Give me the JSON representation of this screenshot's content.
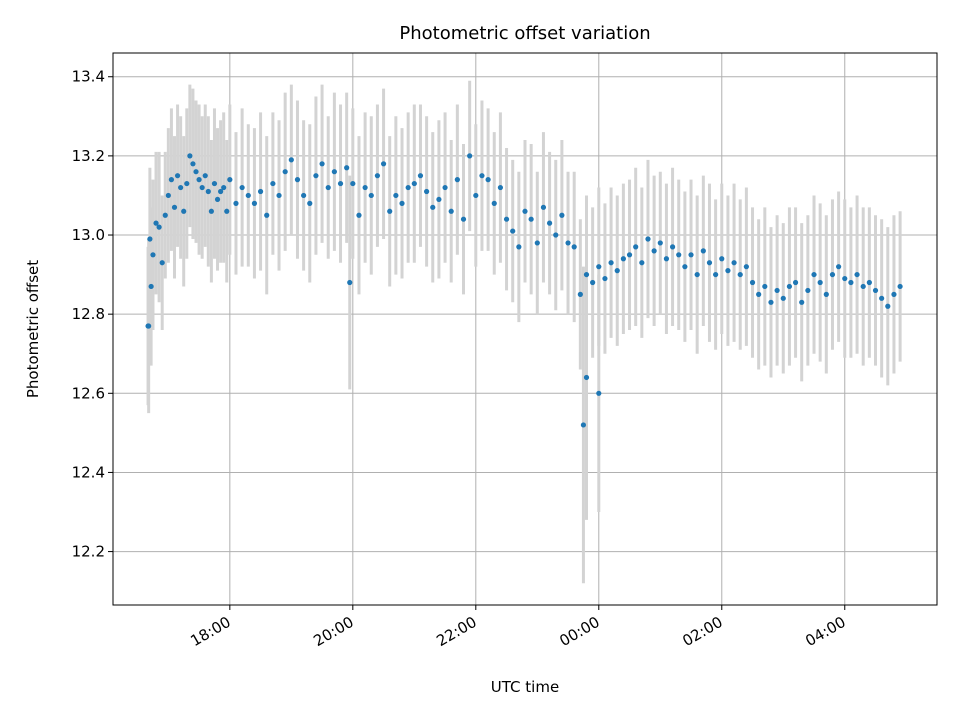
{
  "chart_data": {
    "type": "scatter",
    "title": "Photometric offset variation",
    "xlabel": "UTC time",
    "ylabel": "Photometric offset",
    "x_unit": "hours UTC (continuing past midnight as 24+)",
    "xlim": [
      16.1,
      29.5
    ],
    "ylim": [
      12.065,
      13.46
    ],
    "yticks": [
      12.2,
      12.4,
      12.6,
      12.8,
      13.0,
      13.2,
      13.4
    ],
    "xticks": [
      {
        "value": 18,
        "label": "18:00"
      },
      {
        "value": 20,
        "label": "20:00"
      },
      {
        "value": 22,
        "label": "22:00"
      },
      {
        "value": 24,
        "label": "00:00"
      },
      {
        "value": 26,
        "label": "02:00"
      },
      {
        "value": 28,
        "label": "04:00"
      }
    ],
    "grid": true,
    "colors": {
      "point": "#1f77b4",
      "errorbar": "#d3d3d3",
      "grid": "#b0b0b0"
    },
    "series": [
      {
        "kind": "points with error bars",
        "x": [
          16.67,
          16.7,
          16.72,
          16.75,
          16.8,
          16.85,
          16.9,
          16.95,
          17.0,
          17.05,
          17.1,
          17.15,
          17.2,
          17.25,
          17.3,
          17.35,
          17.4,
          17.45,
          17.5,
          17.55,
          17.6,
          17.65,
          17.7,
          17.75,
          17.8,
          17.85,
          17.9,
          17.95,
          18.0,
          18.1,
          18.2,
          18.3,
          18.4,
          18.5,
          18.6,
          18.7,
          18.8,
          18.9,
          19.0,
          19.1,
          19.2,
          19.3,
          19.4,
          19.5,
          19.6,
          19.7,
          19.8,
          19.9,
          20.0,
          20.1,
          20.2,
          20.3,
          20.4,
          20.5,
          20.6,
          20.7,
          20.8,
          20.9,
          21.0,
          21.1,
          21.2,
          21.3,
          21.4,
          21.5,
          21.6,
          21.7,
          21.8,
          21.9,
          22.0,
          22.1,
          22.2,
          22.3,
          22.4,
          22.5,
          22.6,
          22.7,
          22.8,
          22.9,
          23.0,
          23.1,
          23.2,
          23.3,
          23.4,
          23.5,
          23.6,
          23.7,
          23.8,
          23.9,
          24.0,
          24.1,
          24.2,
          24.3,
          24.4,
          24.5,
          24.6,
          24.7,
          24.8,
          24.9,
          25.0,
          25.1,
          25.2,
          25.3,
          25.4,
          25.5,
          25.6,
          25.7,
          25.8,
          25.9,
          26.0,
          26.1,
          26.2,
          26.3,
          26.4,
          26.5,
          26.6,
          26.7,
          26.8,
          26.9,
          27.0,
          27.1,
          27.2,
          27.3,
          27.4,
          27.5,
          27.6,
          27.7,
          27.8,
          27.9,
          28.0,
          28.1,
          28.2,
          28.3,
          28.4,
          28.5,
          28.6,
          28.7,
          28.8,
          28.9
        ],
        "y": [
          12.77,
          12.99,
          12.87,
          12.95,
          13.03,
          13.02,
          12.93,
          13.05,
          13.1,
          13.14,
          13.07,
          13.15,
          13.12,
          13.06,
          13.13,
          13.2,
          13.18,
          13.16,
          13.14,
          13.12,
          13.15,
          13.11,
          13.06,
          13.13,
          13.09,
          13.11,
          13.12,
          13.06,
          13.14,
          13.08,
          13.12,
          13.1,
          13.08,
          13.11,
          13.05,
          13.13,
          13.1,
          13.16,
          13.19,
          13.14,
          13.1,
          13.08,
          13.15,
          13.18,
          13.12,
          13.16,
          13.13,
          13.17,
          13.13,
          13.05,
          13.12,
          13.1,
          13.15,
          13.18,
          13.06,
          13.1,
          13.08,
          13.12,
          13.13,
          13.15,
          13.11,
          13.07,
          13.09,
          13.12,
          13.06,
          13.14,
          13.04,
          13.2,
          13.1,
          13.15,
          13.14,
          13.08,
          13.12,
          13.04,
          13.01,
          12.97,
          13.06,
          13.04,
          12.98,
          13.07,
          13.03,
          13.0,
          13.05,
          12.98,
          12.97,
          12.85,
          12.9,
          12.88,
          12.92,
          12.89,
          12.93,
          12.91,
          12.94,
          12.95,
          12.97,
          12.93,
          12.99,
          12.96,
          12.98,
          12.94,
          12.97,
          12.95,
          12.92,
          12.95,
          12.9,
          12.96,
          12.93,
          12.9,
          12.94,
          12.91,
          12.93,
          12.9,
          12.92,
          12.88,
          12.85,
          12.87,
          12.83,
          12.86,
          12.84,
          12.87,
          12.88,
          12.83,
          12.86,
          12.9,
          12.88,
          12.85,
          12.9,
          12.92,
          12.89,
          12.88,
          12.9,
          12.87,
          12.88,
          12.86,
          12.84,
          12.82,
          12.85,
          12.87
        ],
        "yerr": [
          0.2,
          0.18,
          0.2,
          0.19,
          0.18,
          0.19,
          0.17,
          0.16,
          0.17,
          0.18,
          0.18,
          0.18,
          0.18,
          0.19,
          0.19,
          0.18,
          0.19,
          0.18,
          0.19,
          0.18,
          0.18,
          0.19,
          0.18,
          0.19,
          0.18,
          0.18,
          0.19,
          0.18,
          0.19,
          0.18,
          0.2,
          0.18,
          0.19,
          0.2,
          0.2,
          0.18,
          0.19,
          0.2,
          0.19,
          0.2,
          0.19,
          0.2,
          0.2,
          0.2,
          0.18,
          0.2,
          0.2,
          0.19,
          0.19,
          0.2,
          0.19,
          0.2,
          0.18,
          0.19,
          0.19,
          0.2,
          0.19,
          0.19,
          0.2,
          0.18,
          0.19,
          0.19,
          0.2,
          0.19,
          0.18,
          0.19,
          0.19,
          0.19,
          0.18,
          0.19,
          0.18,
          0.18,
          0.19,
          0.18,
          0.18,
          0.19,
          0.18,
          0.19,
          0.18,
          0.19,
          0.18,
          0.19,
          0.19,
          0.18,
          0.19,
          0.19,
          0.2,
          0.19,
          0.2,
          0.19,
          0.19,
          0.19,
          0.19,
          0.19,
          0.2,
          0.19,
          0.2,
          0.19,
          0.18,
          0.19,
          0.2,
          0.19,
          0.19,
          0.19,
          0.2,
          0.19,
          0.2,
          0.19,
          0.19,
          0.19,
          0.2,
          0.19,
          0.2,
          0.19,
          0.19,
          0.2,
          0.19,
          0.19,
          0.19,
          0.2,
          0.19,
          0.2,
          0.19,
          0.2,
          0.2,
          0.2,
          0.19,
          0.19,
          0.2,
          0.19,
          0.2,
          0.2,
          0.19,
          0.19,
          0.2,
          0.2,
          0.2,
          0.19
        ]
      },
      {
        "kind": "outlier points with error bars",
        "x": [
          16.68,
          19.95,
          23.75,
          23.8,
          24.0
        ],
        "y": [
          12.77,
          12.88,
          12.52,
          12.64,
          12.6
        ],
        "yerr": [
          0.22,
          0.27,
          0.4,
          0.36,
          0.3
        ]
      }
    ]
  }
}
